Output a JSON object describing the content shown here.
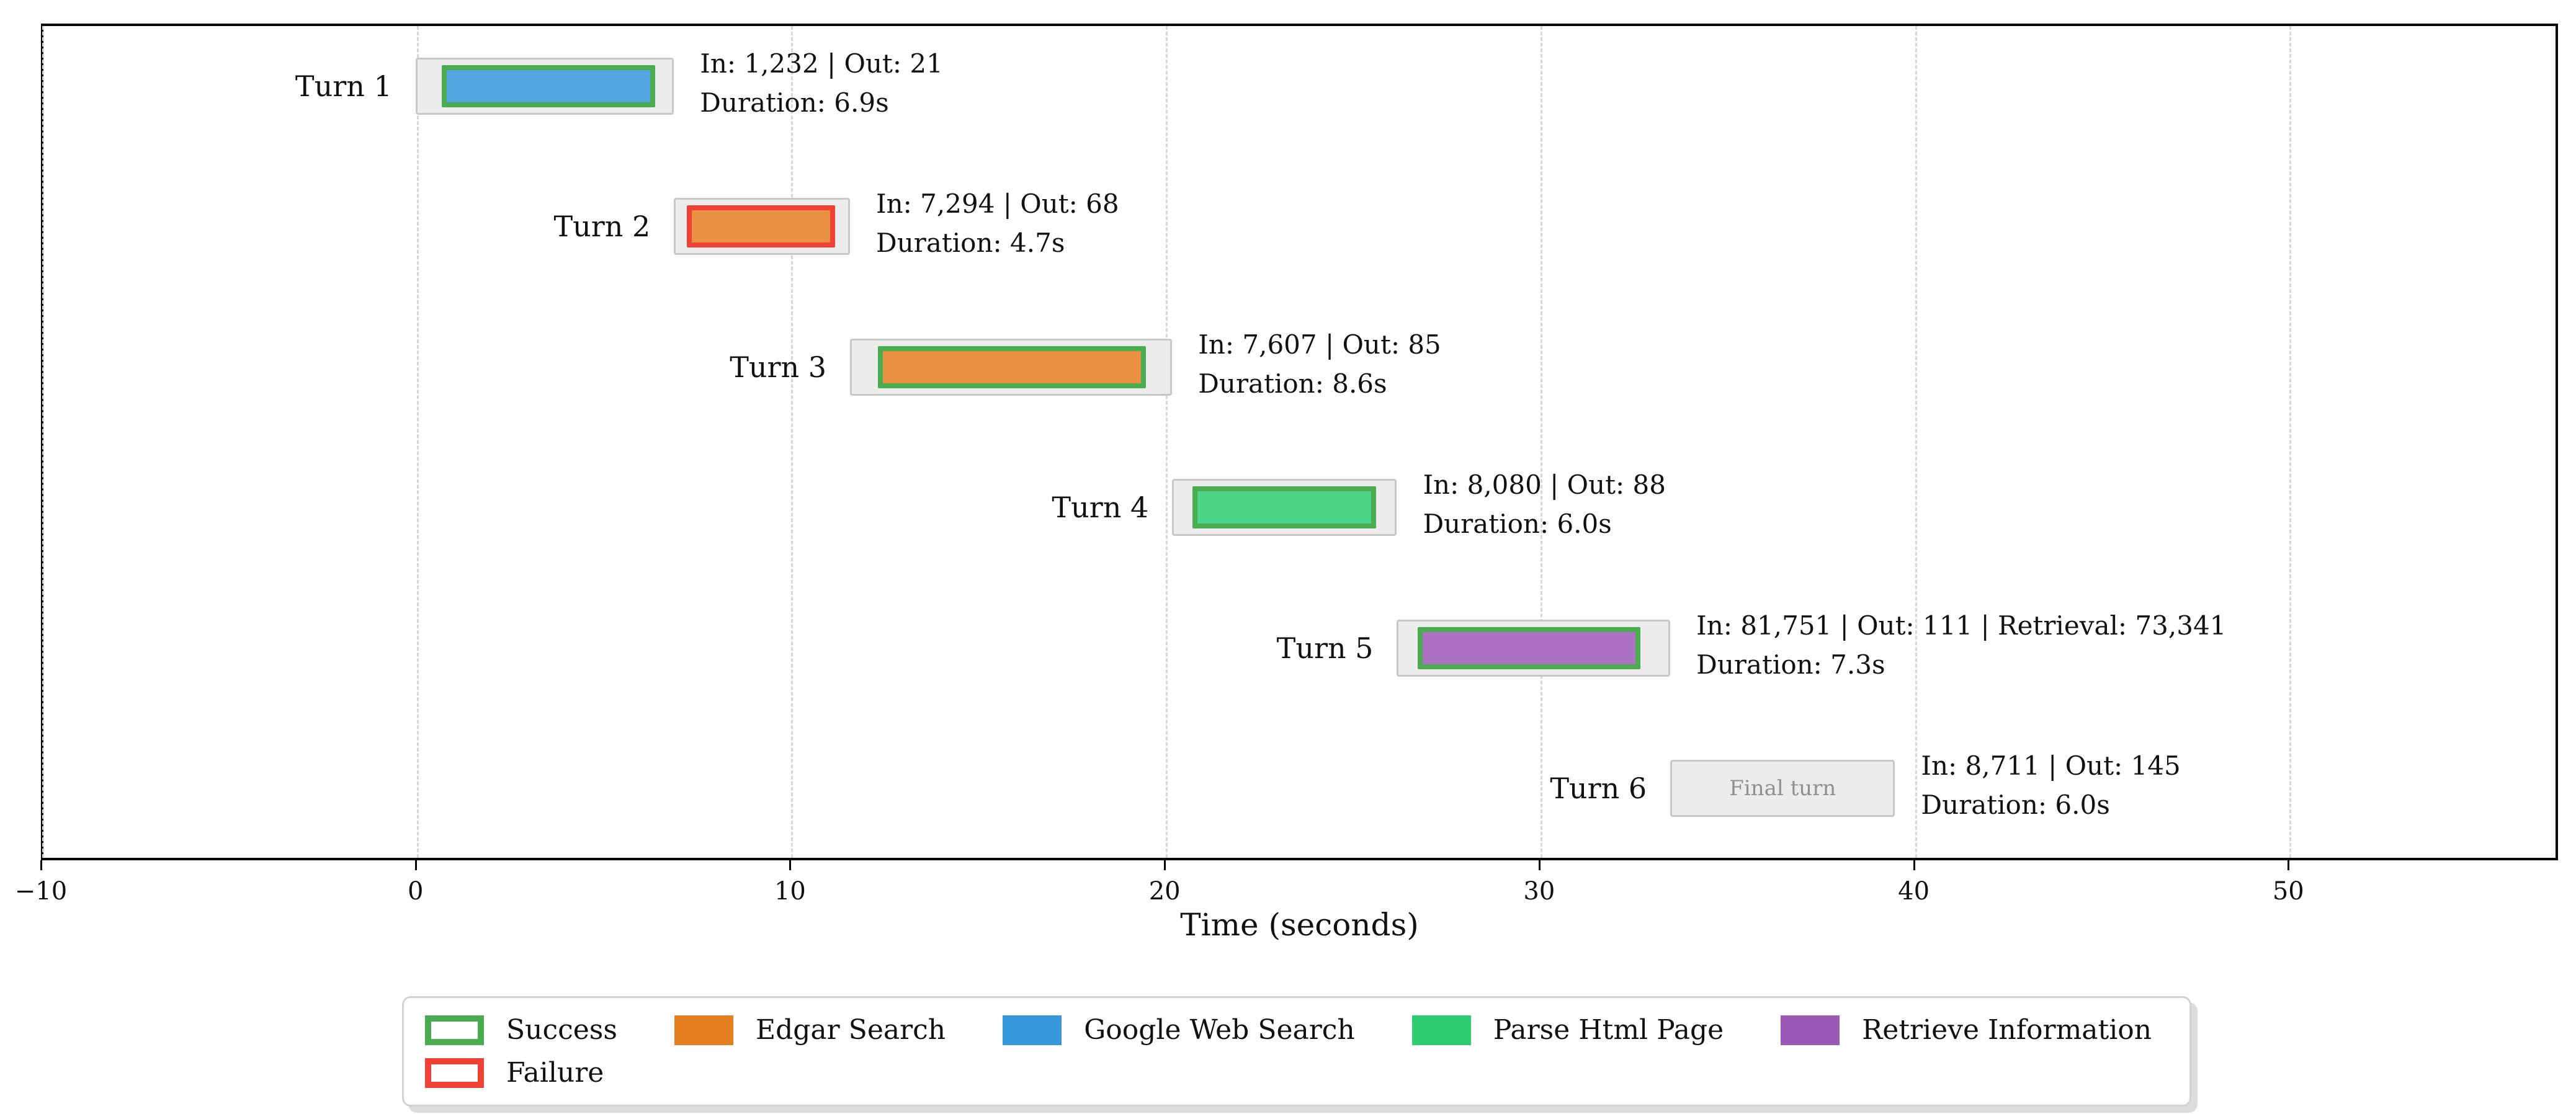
{
  "chart_data": {
    "type": "gantt",
    "title": "",
    "xlabel": "Time (seconds)",
    "xlim": [
      -10,
      57.2
    ],
    "xticks": [
      -10,
      0,
      10,
      20,
      30,
      40,
      50
    ],
    "xtick_labels": [
      "−10",
      "0",
      "10",
      "20",
      "30",
      "40",
      "50"
    ],
    "grid": "vertical-dashed",
    "legend_position": "bottom-center",
    "rows": [
      {
        "label": "Turn 1",
        "turn_start": 0.0,
        "turn_end": 6.9,
        "tool": "Google Web Search",
        "tool_start": 0.7,
        "tool_end": 6.4,
        "status": "Success",
        "annotation_line1": "In: 1,232 | Out: 21",
        "annotation_line2": "Duration: 6.9s"
      },
      {
        "label": "Turn 2",
        "turn_start": 6.9,
        "turn_end": 11.6,
        "tool": "Edgar Search",
        "tool_start": 7.25,
        "tool_end": 11.2,
        "status": "Failure",
        "annotation_line1": "In: 7,294 | Out: 68",
        "annotation_line2": "Duration: 4.7s"
      },
      {
        "label": "Turn 3",
        "turn_start": 11.6,
        "turn_end": 20.2,
        "tool": "Edgar Search",
        "tool_start": 12.35,
        "tool_end": 19.5,
        "status": "Success",
        "annotation_line1": "In: 7,607 | Out: 85",
        "annotation_line2": "Duration: 8.6s"
      },
      {
        "label": "Turn 4",
        "turn_start": 20.2,
        "turn_end": 26.2,
        "tool": "Parse Html Page",
        "tool_start": 20.75,
        "tool_end": 25.65,
        "status": "Success",
        "annotation_line1": "In: 8,080 | Out: 88",
        "annotation_line2": "Duration: 6.0s"
      },
      {
        "label": "Turn 5",
        "turn_start": 26.2,
        "turn_end": 33.5,
        "tool": "Retrieve Information",
        "tool_start": 26.75,
        "tool_end": 32.7,
        "status": "Success",
        "annotation_line1": "In: 81,751 | Out: 111 | Retrieval: 73,341",
        "annotation_line2": "Duration: 7.3s"
      },
      {
        "label": "Turn 6",
        "turn_start": 33.5,
        "turn_end": 39.5,
        "tool": null,
        "tool_start": null,
        "tool_end": null,
        "status": null,
        "final_label": "Final turn",
        "annotation_line1": "In: 8,711 | Out: 145",
        "annotation_line2": "Duration: 6.0s"
      }
    ],
    "tools": {
      "Edgar Search": {
        "color": "#e67e22",
        "fill": "#e99143"
      },
      "Google Web Search": {
        "color": "#3498db",
        "fill": "#52a7e0"
      },
      "Parse Html Page": {
        "color": "#2ecc71",
        "fill": "#4dd386"
      },
      "Retrieve Information": {
        "color": "#9b59b6",
        "fill": "#aa72c1"
      }
    },
    "statuses": {
      "Success": "#4aab50",
      "Failure": "#f04137"
    },
    "turn_container_style": {
      "fill": "#ececec",
      "border": "#c7c7c7"
    },
    "legend_columns": [
      [
        {
          "label": "Success",
          "swatch": "outline",
          "color": "#4aab50"
        },
        {
          "label": "Failure",
          "swatch": "outline",
          "color": "#f04137"
        }
      ],
      [
        {
          "label": "Edgar Search",
          "swatch": "fill",
          "color": "#e67e22"
        }
      ],
      [
        {
          "label": "Google Web Search",
          "swatch": "fill",
          "color": "#3498db"
        }
      ],
      [
        {
          "label": "Parse Html Page",
          "swatch": "fill",
          "color": "#2ecc71"
        }
      ],
      [
        {
          "label": "Retrieve Information",
          "swatch": "fill",
          "color": "#9b59b6"
        }
      ]
    ]
  }
}
